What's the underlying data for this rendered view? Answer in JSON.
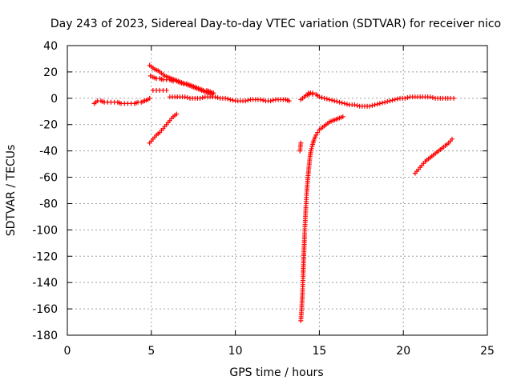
{
  "chart_data": {
    "type": "scatter",
    "title": "Day 243 of 2023, Sidereal Day-to-day VTEC variation (SDTVAR) for receiver nico",
    "xlabel": "GPS time / hours",
    "ylabel": "SDTVAR / TECUs",
    "xlim": [
      0,
      25
    ],
    "ylim": [
      -180,
      40
    ],
    "x_ticks": [
      0,
      5,
      10,
      15,
      20,
      25
    ],
    "y_ticks": [
      40,
      20,
      0,
      -20,
      -40,
      -60,
      -80,
      -100,
      -120,
      -140,
      -160,
      -180
    ],
    "grid": true,
    "marker": "+",
    "color": "#ff0000",
    "series": [
      {
        "x": [
          1.6,
          1.8,
          2.0,
          2.2,
          2.4,
          2.6,
          2.8,
          3.0,
          3.2,
          3.4,
          3.6,
          3.8,
          4.0,
          4.2,
          4.4,
          4.6,
          4.8,
          4.9
        ],
        "values": [
          -4,
          -2,
          -2,
          -3,
          -3,
          -3,
          -3,
          -3,
          -4,
          -4,
          -4,
          -4,
          -4,
          -3,
          -3,
          -2,
          -1,
          0
        ]
      },
      {
        "x": [
          4.9,
          5.0,
          5.2,
          5.4,
          5.6,
          5.8,
          6.0,
          6.2,
          6.4,
          6.6,
          6.8,
          7.0,
          7.2,
          7.4,
          7.6,
          7.8,
          8.0,
          8.2,
          8.4,
          8.6
        ],
        "values": [
          25,
          24,
          22,
          21,
          19,
          17,
          16,
          15,
          14,
          13,
          12,
          11,
          10,
          9,
          8,
          7,
          6,
          5,
          4,
          3
        ]
      },
      {
        "x": [
          4.95,
          5.1,
          5.3,
          5.5,
          5.7,
          5.9,
          6.1,
          6.3,
          6.5,
          6.7,
          6.9,
          7.1,
          7.3,
          7.5,
          7.7,
          7.9,
          8.1,
          8.3,
          8.5,
          8.7
        ],
        "values": [
          17,
          16,
          15,
          15,
          14,
          14,
          14,
          13,
          13,
          12,
          11,
          11,
          10,
          9,
          8,
          7,
          6,
          6,
          5,
          4
        ]
      },
      {
        "x": [
          5.1,
          5.3,
          5.5,
          5.7,
          5.9
        ],
        "values": [
          6,
          6,
          6,
          6,
          6
        ]
      },
      {
        "x": [
          4.9,
          5.1,
          5.3,
          5.5,
          5.7,
          5.9,
          6.1,
          6.3,
          6.5
        ],
        "values": [
          -34,
          -31,
          -28,
          -26,
          -23,
          -20,
          -17,
          -14,
          -12
        ]
      },
      {
        "x": [
          6.1,
          6.4,
          6.7,
          7.0,
          7.3,
          7.6,
          7.9,
          8.2,
          8.5,
          8.8,
          9.1,
          9.4,
          9.7,
          10.0,
          10.3,
          10.6,
          10.9,
          11.2,
          11.5,
          11.8,
          12.1,
          12.4,
          12.7,
          13.0,
          13.2
        ],
        "values": [
          1,
          1,
          1,
          1,
          0,
          0,
          0,
          1,
          1,
          1,
          0,
          0,
          -1,
          -2,
          -2,
          -2,
          -1,
          -1,
          -1,
          -2,
          -2,
          -1,
          -1,
          -1,
          -2
        ]
      },
      {
        "x": [
          13.9,
          14.0,
          14.1,
          14.2,
          14.4,
          14.6,
          14.8,
          15.0,
          15.3,
          15.6,
          15.9,
          16.2,
          16.5,
          16.8,
          17.1,
          17.4,
          17.7,
          18.0,
          18.3,
          18.6,
          18.9,
          19.2,
          19.5,
          19.8,
          20.1,
          20.4,
          20.7,
          21.0,
          21.3,
          21.6,
          21.9,
          22.2,
          22.5,
          22.8,
          23.0
        ],
        "values": [
          -1,
          0,
          1,
          2,
          3,
          3,
          3,
          1,
          0,
          -1,
          -2,
          -3,
          -4,
          -5,
          -5,
          -6,
          -6,
          -6,
          -5,
          -4,
          -3,
          -2,
          -1,
          0,
          0,
          1,
          1,
          1,
          1,
          1,
          0,
          0,
          0,
          0,
          0
        ]
      },
      {
        "x": [
          14.35,
          14.6
        ],
        "values": [
          4,
          4
        ]
      },
      {
        "x": [
          13.9,
          13.95,
          14.0,
          14.02,
          14.04,
          14.06,
          14.08,
          14.1,
          14.12,
          14.15,
          14.18,
          14.21,
          14.25,
          14.3,
          14.35,
          14.4,
          14.45,
          14.5,
          14.6,
          14.7,
          14.8,
          14.9,
          15.0,
          15.2,
          15.4,
          15.6,
          15.8,
          16.0,
          16.2,
          16.4
        ],
        "values": [
          -169,
          -160,
          -148,
          -140,
          -132,
          -125,
          -118,
          -111,
          -104,
          -96,
          -88,
          -80,
          -72,
          -63,
          -56,
          -50,
          -44,
          -40,
          -35,
          -31,
          -28,
          -26,
          -24,
          -22,
          -20,
          -18,
          -17,
          -16,
          -15,
          -14
        ]
      },
      {
        "x": [
          13.85,
          13.87,
          13.9
        ],
        "values": [
          -40,
          -37,
          -34
        ]
      },
      {
        "x": [
          20.7,
          20.9,
          21.1,
          21.3,
          21.5,
          21.7,
          21.9,
          22.1,
          22.3,
          22.5,
          22.7,
          22.9
        ],
        "values": [
          -57,
          -54,
          -51,
          -48,
          -46,
          -44,
          -42,
          -40,
          -38,
          -36,
          -34,
          -31
        ]
      }
    ]
  }
}
